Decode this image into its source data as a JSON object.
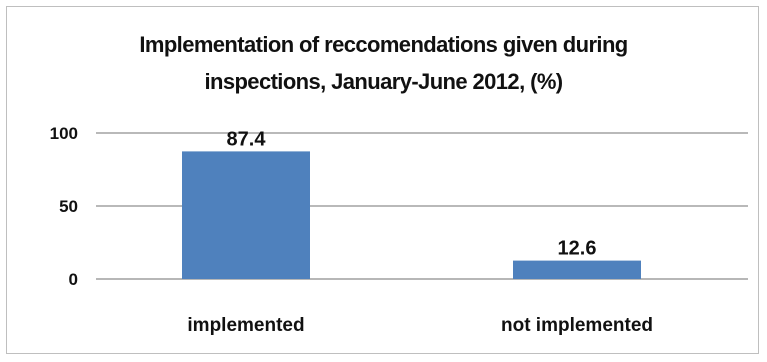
{
  "chart_data": {
    "type": "bar",
    "title_lines": [
      "Implementation of reccomendations given during",
      "inspections, January-June 2012, (%)"
    ],
    "categories": [
      "implemented",
      "not implemented"
    ],
    "values": [
      87.4,
      12.6
    ],
    "data_labels": [
      "87.4",
      "12.6"
    ],
    "ylim": [
      0,
      100
    ],
    "yticks": [
      0,
      50,
      100
    ],
    "grid": true,
    "legend": "none",
    "bar_color": "#4f81bd",
    "xlabel": "",
    "ylabel": ""
  }
}
